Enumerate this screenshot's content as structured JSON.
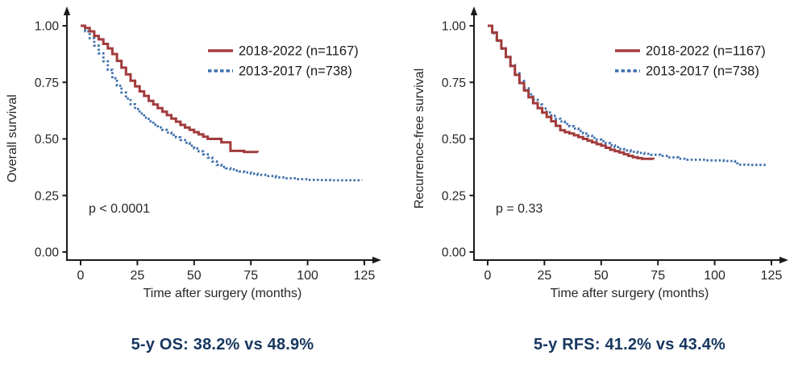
{
  "figure": {
    "colors": {
      "background": "#ffffff",
      "axis": "#1a1a1a",
      "tick_text": "#262626",
      "legend_text": "#1a1a1a",
      "annotation_text": "#262626",
      "caption_text": "#16365F",
      "series_2018_2022": "#a23b3c",
      "series_2013_2017": "#3e6fac"
    }
  },
  "chart_data": [
    {
      "type": "line",
      "subtype": "kaplan-meier-step",
      "title": "",
      "xlabel": "Time after surgery (months)",
      "ylabel": "Overall survival",
      "xlim": [
        0,
        137
      ],
      "ylim": [
        0,
        1.0
      ],
      "grid": false,
      "legend_position": "top-right",
      "x_ticks": [
        0,
        25,
        50,
        75,
        100,
        125
      ],
      "y_tick_values": [
        0,
        0.25,
        0.5,
        0.75,
        1.0
      ],
      "y_tick_labels": [
        "0.00",
        "0.25",
        "0.50",
        "0.75",
        "1.00"
      ],
      "annotation": "p < 0.0001",
      "caption": "5-y OS: 38.2% vs 48.9%",
      "series": [
        {
          "name": "2018-2022 (n=1167)",
          "color": "#a23b3c",
          "style": "solid",
          "points": [
            [
              0,
              1.0
            ],
            [
              2,
              0.99
            ],
            [
              4,
              0.975
            ],
            [
              6,
              0.955
            ],
            [
              8,
              0.94
            ],
            [
              10,
              0.92
            ],
            [
              12,
              0.9
            ],
            [
              14,
              0.875
            ],
            [
              16,
              0.845
            ],
            [
              18,
              0.815
            ],
            [
              20,
              0.785
            ],
            [
              22,
              0.757
            ],
            [
              24,
              0.732
            ],
            [
              26,
              0.71
            ],
            [
              28,
              0.69
            ],
            [
              30,
              0.668
            ],
            [
              32,
              0.652
            ],
            [
              34,
              0.636
            ],
            [
              36,
              0.62
            ],
            [
              38,
              0.605
            ],
            [
              40,
              0.59
            ],
            [
              42,
              0.576
            ],
            [
              44,
              0.562
            ],
            [
              46,
              0.55
            ],
            [
              48,
              0.54
            ],
            [
              50,
              0.53
            ],
            [
              52,
              0.52
            ],
            [
              54,
              0.51
            ],
            [
              56,
              0.5
            ],
            [
              62,
              0.485
            ],
            [
              66,
              0.447
            ],
            [
              72,
              0.442
            ],
            [
              78,
              0.44
            ]
          ]
        },
        {
          "name": "2013-2017 (n=738)",
          "color": "#3e6fac",
          "style": "dotted",
          "points": [
            [
              0,
              1.0
            ],
            [
              2,
              0.975
            ],
            [
              4,
              0.945
            ],
            [
              6,
              0.912
            ],
            [
              8,
              0.878
            ],
            [
              10,
              0.843
            ],
            [
              12,
              0.805
            ],
            [
              14,
              0.768
            ],
            [
              16,
              0.735
            ],
            [
              18,
              0.705
            ],
            [
              20,
              0.678
            ],
            [
              22,
              0.653
            ],
            [
              24,
              0.632
            ],
            [
              26,
              0.612
            ],
            [
              28,
              0.594
            ],
            [
              30,
              0.578
            ],
            [
              32,
              0.563
            ],
            [
              34,
              0.551
            ],
            [
              36,
              0.54
            ],
            [
              38,
              0.528
            ],
            [
              40,
              0.517
            ],
            [
              42,
              0.507
            ],
            [
              44,
              0.495
            ],
            [
              46,
              0.483
            ],
            [
              48,
              0.47
            ],
            [
              50,
              0.458
            ],
            [
              52,
              0.445
            ],
            [
              54,
              0.432
            ],
            [
              56,
              0.417
            ],
            [
              58,
              0.4
            ],
            [
              60,
              0.385
            ],
            [
              62,
              0.376
            ],
            [
              64,
              0.37
            ],
            [
              66,
              0.365
            ],
            [
              68,
              0.36
            ],
            [
              70,
              0.356
            ],
            [
              72,
              0.352
            ],
            [
              75,
              0.346
            ],
            [
              78,
              0.341
            ],
            [
              82,
              0.336
            ],
            [
              86,
              0.33
            ],
            [
              90,
              0.326
            ],
            [
              95,
              0.322
            ],
            [
              100,
              0.319
            ],
            [
              105,
              0.318
            ],
            [
              110,
              0.317
            ],
            [
              124,
              0.317
            ]
          ]
        }
      ]
    },
    {
      "type": "line",
      "subtype": "kaplan-meier-step",
      "title": "",
      "xlabel": "Time after surgery (months)",
      "ylabel": "Recurrence-free survival",
      "xlim": [
        0,
        137
      ],
      "ylim": [
        0,
        1.0
      ],
      "grid": false,
      "legend_position": "top-right",
      "x_ticks": [
        0,
        25,
        50,
        75,
        100,
        125
      ],
      "y_tick_values": [
        0,
        0.25,
        0.5,
        0.75,
        1.0
      ],
      "y_tick_labels": [
        "0.00",
        "0.25",
        "0.50",
        "0.75",
        "1.00"
      ],
      "annotation": "p = 0.33",
      "caption": "5-y RFS: 41.2% vs 43.4%",
      "series": [
        {
          "name": "2018-2022 (n=1167)",
          "color": "#a23b3c",
          "style": "solid",
          "points": [
            [
              0,
              1.0
            ],
            [
              2,
              0.97
            ],
            [
              4,
              0.935
            ],
            [
              6,
              0.9
            ],
            [
              8,
              0.862
            ],
            [
              10,
              0.822
            ],
            [
              12,
              0.783
            ],
            [
              14,
              0.747
            ],
            [
              16,
              0.714
            ],
            [
              18,
              0.684
            ],
            [
              20,
              0.658
            ],
            [
              22,
              0.636
            ],
            [
              24,
              0.616
            ],
            [
              26,
              0.597
            ],
            [
              28,
              0.578
            ],
            [
              30,
              0.558
            ],
            [
              32,
              0.538
            ],
            [
              34,
              0.53
            ],
            [
              36,
              0.524
            ],
            [
              38,
              0.516
            ],
            [
              40,
              0.508
            ],
            [
              42,
              0.5
            ],
            [
              44,
              0.492
            ],
            [
              46,
              0.485
            ],
            [
              48,
              0.477
            ],
            [
              50,
              0.47
            ],
            [
              52,
              0.461
            ],
            [
              54,
              0.452
            ],
            [
              56,
              0.446
            ],
            [
              58,
              0.44
            ],
            [
              60,
              0.432
            ],
            [
              62,
              0.425
            ],
            [
              64,
              0.419
            ],
            [
              66,
              0.415
            ],
            [
              68,
              0.412
            ],
            [
              73,
              0.41
            ]
          ]
        },
        {
          "name": "2013-2017 (n=738)",
          "color": "#3e6fac",
          "style": "dotted",
          "points": [
            [
              0,
              1.0
            ],
            [
              2,
              0.967
            ],
            [
              4,
              0.933
            ],
            [
              6,
              0.898
            ],
            [
              8,
              0.862
            ],
            [
              10,
              0.826
            ],
            [
              12,
              0.79
            ],
            [
              14,
              0.756
            ],
            [
              16,
              0.724
            ],
            [
              18,
              0.697
            ],
            [
              20,
              0.673
            ],
            [
              22,
              0.652
            ],
            [
              24,
              0.634
            ],
            [
              26,
              0.617
            ],
            [
              28,
              0.602
            ],
            [
              30,
              0.589
            ],
            [
              32,
              0.577
            ],
            [
              34,
              0.566
            ],
            [
              36,
              0.556
            ],
            [
              38,
              0.546
            ],
            [
              40,
              0.535
            ],
            [
              42,
              0.524
            ],
            [
              44,
              0.514
            ],
            [
              46,
              0.505
            ],
            [
              48,
              0.497
            ],
            [
              50,
              0.49
            ],
            [
              52,
              0.481
            ],
            [
              54,
              0.472
            ],
            [
              56,
              0.464
            ],
            [
              58,
              0.456
            ],
            [
              60,
              0.449
            ],
            [
              63,
              0.443
            ],
            [
              66,
              0.438
            ],
            [
              69,
              0.434
            ],
            [
              72,
              0.43
            ],
            [
              76,
              0.425
            ],
            [
              80,
              0.418
            ],
            [
              84,
              0.412
            ],
            [
              88,
              0.408
            ],
            [
              96,
              0.405
            ],
            [
              104,
              0.402
            ],
            [
              109,
              0.4
            ],
            [
              110,
              0.386
            ],
            [
              116,
              0.385
            ],
            [
              123,
              0.384
            ]
          ]
        }
      ]
    }
  ]
}
